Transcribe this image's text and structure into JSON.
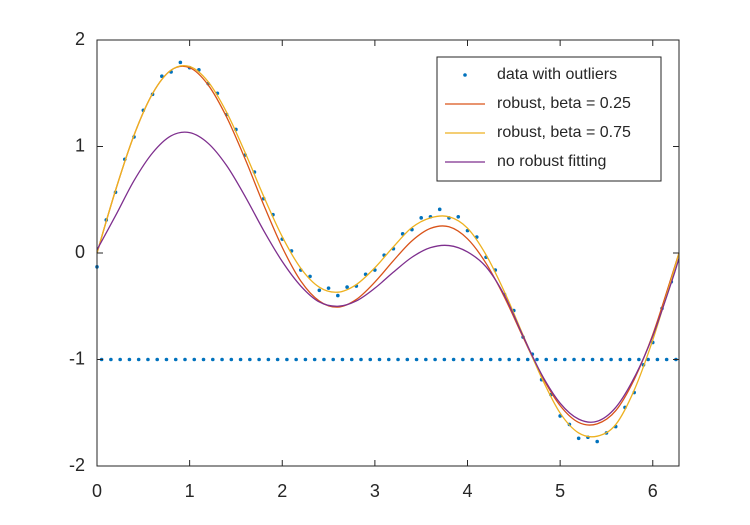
{
  "chart_data": {
    "type": "line",
    "x": [
      0,
      0.2,
      0.4,
      0.6,
      0.8,
      1.0,
      1.2,
      1.4,
      1.6,
      1.8,
      2.0,
      2.2,
      2.4,
      2.6,
      2.8,
      3.0,
      3.2,
      3.4,
      3.6,
      3.8,
      4.0,
      4.2,
      4.4,
      4.6,
      4.8,
      5.0,
      5.2,
      5.4,
      5.6,
      5.8,
      6.0,
      6.2,
      6.2832
    ],
    "series": [
      {
        "name": "data with outliers",
        "color": "#0072bd",
        "mode": "markers",
        "x": [
          0,
          0.05,
          0.1,
          0.15,
          0.2,
          0.25,
          0.3,
          0.35,
          0.4,
          0.45,
          0.5,
          0.55,
          0.6,
          0.65,
          0.7,
          0.75,
          0.8,
          0.85,
          0.9,
          0.95,
          1.0,
          1.05,
          1.1,
          1.15,
          1.2,
          1.25,
          1.3,
          1.35,
          1.4,
          1.45,
          1.5,
          1.55,
          1.6,
          1.65,
          1.7,
          1.75,
          1.8,
          1.85,
          1.9,
          1.95,
          2.0,
          2.05,
          2.1,
          2.15,
          2.2,
          2.25,
          2.3,
          2.35,
          2.4,
          2.45,
          2.5,
          2.55,
          2.6,
          2.65,
          2.7,
          2.75,
          2.8,
          2.85,
          2.9,
          2.95,
          3.0,
          3.05,
          3.1,
          3.15,
          3.2,
          3.25,
          3.3,
          3.35,
          3.4,
          3.45,
          3.5,
          3.55,
          3.6,
          3.65,
          3.7,
          3.75,
          3.8,
          3.85,
          3.9,
          3.95,
          4.0,
          4.05,
          4.1,
          4.15,
          4.2,
          4.25,
          4.3,
          4.35,
          4.4,
          4.45,
          4.5,
          4.55,
          4.6,
          4.65,
          4.7,
          4.75,
          4.8,
          4.85,
          4.9,
          4.95,
          5.0,
          5.05,
          5.1,
          5.15,
          5.2,
          5.25,
          5.3,
          5.35,
          5.4,
          5.45,
          5.5,
          5.55,
          5.6,
          5.65,
          5.7,
          5.75,
          5.8,
          5.85,
          5.9,
          5.95,
          6.0,
          6.05,
          6.1,
          6.15,
          6.2,
          6.25
        ],
        "values": [
          -0.13,
          -1,
          0.31,
          -1,
          0.57,
          -1,
          0.88,
          -1,
          1.09,
          -1,
          1.34,
          -1,
          1.49,
          -1,
          1.66,
          -1,
          1.7,
          -1,
          1.79,
          -1,
          1.74,
          -1,
          1.72,
          -1,
          1.59,
          -1,
          1.5,
          -1,
          1.3,
          -1,
          1.16,
          -1,
          0.92,
          -1,
          0.76,
          -1,
          0.51,
          -1,
          0.36,
          -1,
          0.13,
          -1,
          0.02,
          -1,
          -0.16,
          -1,
          -0.22,
          -1,
          -0.35,
          -1,
          -0.33,
          -1,
          -0.4,
          -1,
          -0.32,
          -1,
          -0.31,
          -1,
          -0.2,
          -1,
          -0.16,
          -1,
          -0.02,
          -1,
          0.04,
          -1,
          0.18,
          -1,
          0.22,
          -1,
          0.33,
          -1,
          0.34,
          -1,
          0.41,
          -1,
          0.33,
          -1,
          0.34,
          -1,
          0.21,
          -1,
          0.15,
          -1,
          -0.04,
          -1,
          -0.16,
          -1,
          -0.39,
          -1,
          -0.54,
          -1,
          -0.79,
          -1,
          -0.95,
          -1,
          -1.19,
          -1,
          -1.33,
          -1,
          -1.53,
          -1,
          -1.61,
          -1,
          -1.74,
          -1,
          -1.73,
          -1,
          -1.77,
          -1,
          -1.69,
          -1,
          -1.63,
          -1,
          -1.45,
          -1,
          -1.31,
          -1,
          -1.05,
          -1,
          -0.84,
          -1,
          -0.52,
          -1,
          -0.27,
          -1
        ]
      },
      {
        "name": "robust, beta = 0.25",
        "color": "#d95319",
        "mode": "line",
        "values": [
          0,
          0.588,
          1.107,
          1.497,
          1.717,
          1.74,
          1.578,
          1.275,
          0.881,
          0.451,
          0.053,
          -0.263,
          -0.451,
          -0.508,
          -0.436,
          -0.273,
          -0.072,
          0.114,
          0.231,
          0.246,
          0.133,
          -0.097,
          -0.417,
          -0.791,
          -1.151,
          -1.433,
          -1.591,
          -1.604,
          -1.481,
          -1.187,
          -0.766,
          -0.229,
          0
        ]
      },
      {
        "name": "robust, beta = 0.75",
        "color": "#edb120",
        "mode": "line",
        "values": [
          0,
          0.588,
          1.107,
          1.497,
          1.717,
          1.751,
          1.608,
          1.32,
          0.941,
          0.531,
          0.153,
          -0.143,
          -0.321,
          -0.368,
          -0.296,
          -0.138,
          0.058,
          0.239,
          0.33,
          0.34,
          0.233,
          -0.017,
          -0.367,
          -0.771,
          -1.171,
          -1.503,
          -1.69,
          -1.72,
          -1.611,
          -1.287,
          -0.816,
          -0.249,
          0
        ]
      },
      {
        "name": "no robust fitting",
        "color": "#7e2f8e",
        "mode": "line",
        "values": [
          0.03,
          0.35,
          0.68,
          0.94,
          1.1,
          1.13,
          1.03,
          0.82,
          0.53,
          0.21,
          -0.08,
          -0.31,
          -0.46,
          -0.5,
          -0.45,
          -0.33,
          -0.18,
          -0.04,
          0.05,
          0.07,
          0.01,
          -0.13,
          -0.4,
          -0.78,
          -1.14,
          -1.41,
          -1.56,
          -1.58,
          -1.45,
          -1.17,
          -0.78,
          -0.28,
          -0.05
        ]
      }
    ],
    "xlim": [
      0,
      6.2832
    ],
    "xticks": [
      0,
      1,
      2,
      3,
      4,
      5,
      6
    ],
    "ylim": [
      -2,
      2
    ],
    "yticks": [
      -2,
      -1,
      0,
      1,
      2
    ],
    "legend": "top-right"
  }
}
